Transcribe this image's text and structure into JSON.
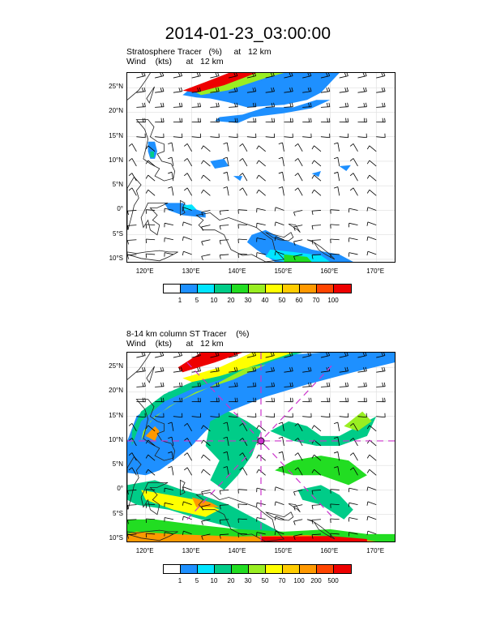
{
  "title": "2014-01-23_03:00:00",
  "panels": [
    {
      "line1": "Stratosphere Tracer   (%)     at   12 km",
      "line2": "Wind    (kts)      at   12 km",
      "colorbar_labels": [
        "1",
        "5",
        "10",
        "20",
        "30",
        "40",
        "50",
        "60",
        "70",
        "100"
      ],
      "colors": [
        "#ffffff",
        "#1e90ff",
        "#00e5ff",
        "#00cc88",
        "#22dd22",
        "#99ee22",
        "#ffff00",
        "#ffcc00",
        "#ff9900",
        "#ff4400",
        "#ee0000"
      ]
    },
    {
      "line1": "8-14 km column ST Tracer    (%)",
      "line2": "Wind    (kts)      at   12 km",
      "colorbar_labels": [
        "1",
        "5",
        "10",
        "20",
        "30",
        "50",
        "70",
        "100",
        "200",
        "500"
      ],
      "colors": [
        "#ffffff",
        "#1e90ff",
        "#00e5ff",
        "#00cc88",
        "#22dd22",
        "#99ee22",
        "#ffff00",
        "#ffcc00",
        "#ff9900",
        "#ff4400",
        "#ee0000"
      ]
    }
  ],
  "chart_data": {
    "type": "heatmap",
    "lon_ticks": [
      "120°E",
      "130°E",
      "140°E",
      "150°E",
      "160°E",
      "170°E"
    ],
    "lat_ticks": [
      "25°N",
      "20°N",
      "15°N",
      "10°N",
      "5°N",
      "0°",
      "5°S",
      "10°S"
    ],
    "lon_range": [
      116,
      174
    ],
    "lat_range": [
      -10.5,
      28
    ],
    "grid": true,
    "storm_center": {
      "lon": 145,
      "lat": 10
    }
  }
}
